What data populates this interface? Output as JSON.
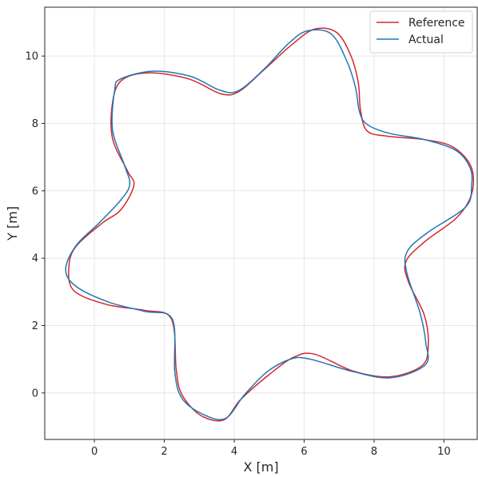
{
  "chart_data": {
    "type": "line",
    "title": "",
    "xlabel": "X [m]",
    "ylabel": "Y [m]",
    "xlim": [
      -1.42,
      10.95
    ],
    "ylim": [
      -1.38,
      11.45
    ],
    "xticks": [
      0,
      2,
      4,
      6,
      8,
      10
    ],
    "yticks": [
      0,
      2,
      4,
      6,
      8,
      10
    ],
    "grid": true,
    "legend_position": "top-right",
    "series": [
      {
        "name": "Reference",
        "color": "#d62728",
        "x": [
          6.3,
          6.93,
          7.34,
          7.55,
          7.61,
          7.8,
          8.39,
          9.44,
          10.26,
          10.78,
          10.79,
          10.36,
          9.46,
          8.91,
          8.99,
          9.44,
          9.55,
          9.36,
          8.45,
          7.4,
          6.3,
          5.7,
          4.98,
          4.18,
          3.7,
          3.03,
          2.5,
          2.34,
          2.2,
          1.44,
          0.37,
          -0.59,
          -0.73,
          -0.52,
          0.25,
          0.76,
          1.13,
          0.95,
          0.52,
          0.52,
          0.78,
          1.55,
          2.7,
          3.62,
          4.14,
          4.86,
          5.65,
          6.3
        ],
        "y": [
          10.8,
          10.7,
          10.0,
          9.2,
          8.42,
          7.78,
          7.62,
          7.52,
          7.3,
          6.7,
          5.9,
          5.2,
          4.5,
          3.9,
          3.28,
          2.3,
          1.4,
          0.8,
          0.48,
          0.65,
          1.15,
          1.06,
          0.53,
          -0.2,
          -0.8,
          -0.66,
          -0.04,
          0.7,
          2.2,
          2.45,
          2.62,
          3.04,
          3.75,
          4.36,
          5.06,
          5.44,
          6.16,
          6.58,
          7.55,
          8.62,
          9.28,
          9.5,
          9.32,
          8.88,
          8.95,
          9.6,
          10.34,
          10.8
        ]
      },
      {
        "name": "Actual",
        "color": "#1f77b4",
        "x": [
          6.1,
          6.77,
          7.22,
          7.47,
          7.58,
          7.79,
          8.42,
          9.44,
          10.34,
          10.74,
          10.79,
          10.62,
          9.53,
          8.95,
          8.93,
          9.32,
          9.48,
          9.47,
          8.49,
          7.41,
          6.14,
          5.6,
          4.93,
          4.29,
          3.74,
          3.08,
          2.5,
          2.3,
          2.23,
          1.45,
          0.43,
          -0.52,
          -0.82,
          -0.52,
          0.13,
          0.75,
          1.01,
          0.86,
          0.52,
          0.58,
          0.75,
          1.67,
          2.74,
          3.58,
          4.12,
          4.86,
          5.57,
          6.1
        ],
        "y": [
          10.75,
          10.66,
          9.85,
          9.06,
          8.36,
          7.98,
          7.71,
          7.52,
          7.2,
          6.7,
          6.16,
          5.52,
          4.76,
          4.2,
          3.59,
          2.36,
          1.49,
          0.84,
          0.45,
          0.63,
          1.01,
          1.0,
          0.62,
          -0.06,
          -0.76,
          -0.62,
          -0.15,
          0.62,
          2.19,
          2.42,
          2.69,
          3.16,
          3.67,
          4.38,
          5.04,
          5.72,
          6.19,
          6.76,
          7.81,
          8.99,
          9.32,
          9.55,
          9.4,
          8.99,
          8.97,
          9.62,
          10.39,
          10.75
        ]
      }
    ]
  }
}
